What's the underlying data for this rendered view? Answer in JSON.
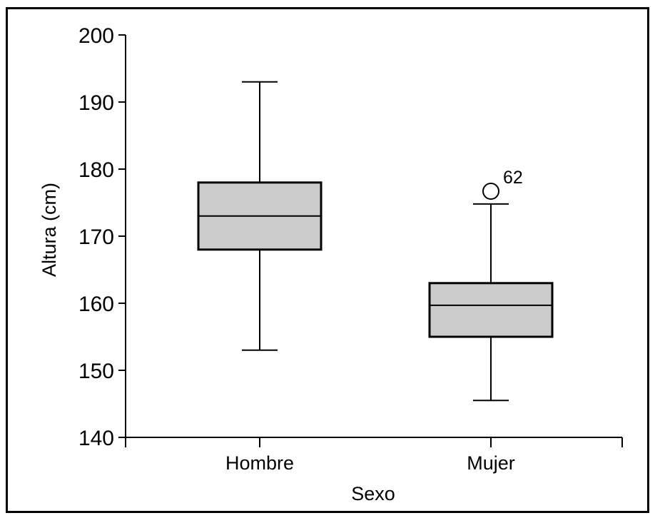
{
  "chart_data": {
    "type": "box",
    "title": "",
    "xlabel": "Sexo",
    "ylabel": "Altura (cm)",
    "ylim": [
      140,
      200
    ],
    "yticks": [
      140,
      150,
      160,
      170,
      180,
      190,
      200
    ],
    "grid": false,
    "categories": [
      "Hombre",
      "Mujer"
    ],
    "boxes": [
      {
        "category": "Hombre",
        "whisker_low": 153,
        "q1": 168,
        "median": 173,
        "q3": 178,
        "whisker_high": 193,
        "outliers": []
      },
      {
        "category": "Mujer",
        "whisker_low": 145.5,
        "q1": 155,
        "median": 159.7,
        "q3": 163,
        "whisker_high": 174.8,
        "outliers": [
          {
            "value": 176.7,
            "label": "62"
          }
        ]
      }
    ],
    "colors": {
      "box_fill": "#cccccc",
      "stroke": "#000000"
    }
  }
}
